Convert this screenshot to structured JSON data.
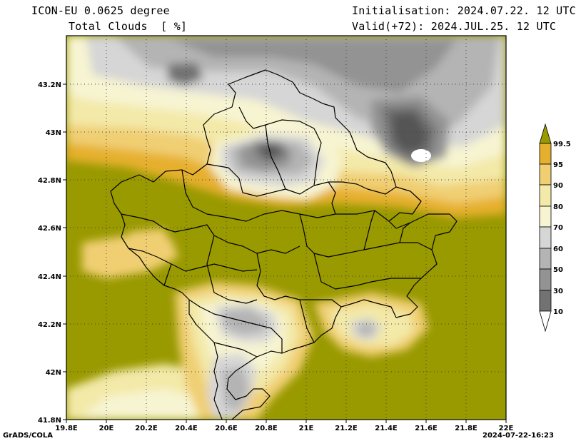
{
  "header": {
    "model": "ICON-EU 0.0625 degree",
    "variable": "Total Clouds  [ %]",
    "init": "Initialisation: 2024.07.22. 12 UTC",
    "valid": "Valid(+72): 2024.JUL.25. 12 UTC"
  },
  "footer": {
    "left": "GrADS/COLA",
    "right": "2024-07-22-16:23"
  },
  "map": {
    "lon_range": [
      19.8,
      22.0
    ],
    "lat_range": [
      41.8,
      43.4
    ],
    "lon_ticks": [
      "19.8E",
      "20E",
      "20.2E",
      "20.4E",
      "20.6E",
      "20.8E",
      "21E",
      "21.2E",
      "21.4E",
      "21.6E",
      "21.8E",
      "22E"
    ],
    "lat_ticks": [
      "41.8N",
      "42N",
      "42.2N",
      "42.4N",
      "42.6N",
      "42.8N",
      "43N",
      "43.2N"
    ],
    "grid": "dotted"
  },
  "colorbar": {
    "levels": [
      "99.5",
      "95",
      "90",
      "80",
      "70",
      "60",
      "50",
      "30",
      "10"
    ],
    "colors": [
      "#999900",
      "#e6b02f",
      "#f0cf73",
      "#f3e9a8",
      "#f7f4d2",
      "#d6d6d6",
      "#b4b4b4",
      "#939393",
      "#727272",
      "#555555",
      "#ffffff"
    ]
  }
}
